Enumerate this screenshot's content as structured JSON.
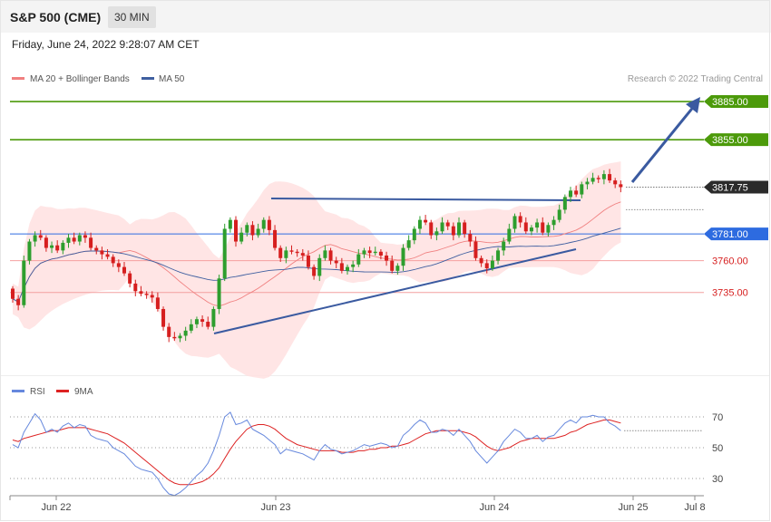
{
  "header": {
    "symbol": "S&P 500 (CME)",
    "timeframe": "30 MIN",
    "datetime": "Friday, June 24, 2022 9:28:07 AM CET"
  },
  "legend": {
    "ma20": "MA 20 + Bollinger Bands",
    "ma50": "MA 50",
    "credit": "Research © 2022 Trading Central",
    "rsi": "RSI",
    "rsi_ma": "9MA"
  },
  "colors": {
    "ma20": "#f08080",
    "bands_fill": "#ffe0e0",
    "ma50": "#3f5fa0",
    "up_candle": "#2e9e2e",
    "down_candle": "#d61f1f",
    "target_line": "#4c9a0a",
    "pivot_line": "#2d6be0",
    "support_line": "#f4a0a0",
    "trend_line": "#3a5aa0",
    "rsi": "#6688dd",
    "rsi_ma": "#dd2222"
  },
  "chart_data": [
    {
      "type": "candlestick",
      "title": "S&P 500 (CME)",
      "ylim": [
        3670,
        3895
      ],
      "x_ticks": [
        "Jun 22",
        "Jun 23",
        "Jun 24",
        "Jun 25",
        "Jul 8"
      ],
      "last_price": 3817.75,
      "levels": [
        {
          "label": "3885.00",
          "value": 3885.0,
          "kind": "target"
        },
        {
          "label": "3855.00",
          "value": 3855.0,
          "kind": "target"
        },
        {
          "label": "3817.75",
          "value": 3817.75,
          "kind": "last"
        },
        {
          "label": "3781.00",
          "value": 3781.0,
          "kind": "pivot"
        },
        {
          "label": "3760.00",
          "value": 3760.0,
          "kind": "support"
        },
        {
          "label": "3735.00",
          "value": 3735.0,
          "kind": "support"
        }
      ],
      "bias": "bullish, arrow from 3817.75 toward 3885.00",
      "series": [
        {
          "name": "MA 20 + Bollinger Bands"
        },
        {
          "name": "MA 50"
        }
      ],
      "close": [
        3730,
        3725,
        3760,
        3775,
        3780,
        3778,
        3770,
        3772,
        3768,
        3774,
        3778,
        3775,
        3780,
        3778,
        3770,
        3768,
        3765,
        3763,
        3758,
        3755,
        3750,
        3742,
        3736,
        3734,
        3733,
        3731,
        3722,
        3708,
        3700,
        3699,
        3701,
        3705,
        3710,
        3714,
        3712,
        3708,
        3722,
        3746,
        3785,
        3792,
        3775,
        3782,
        3788,
        3780,
        3785,
        3792,
        3784,
        3770,
        3762,
        3768,
        3767,
        3766,
        3764,
        3755,
        3748,
        3762,
        3768,
        3760,
        3758,
        3752,
        3755,
        3757,
        3765,
        3768,
        3766,
        3767,
        3764,
        3760,
        3752,
        3756,
        3770,
        3776,
        3785,
        3792,
        3790,
        3780,
        3783,
        3790,
        3787,
        3780,
        3790,
        3781,
        3775,
        3762,
        3758,
        3754,
        3760,
        3768,
        3775,
        3785,
        3795,
        3790,
        3783,
        3786,
        3790,
        3782,
        3788,
        3792,
        3800,
        3810,
        3815,
        3812,
        3820,
        3822,
        3825,
        3824,
        3828,
        3823,
        3820,
        3817.75
      ]
    },
    {
      "type": "line",
      "title": "RSI",
      "ylim": [
        20,
        80
      ],
      "y_ticks": [
        70,
        50,
        30
      ],
      "series": [
        {
          "name": "RSI"
        },
        {
          "name": "9MA"
        }
      ],
      "rsi": [
        52,
        50,
        60,
        66,
        72,
        68,
        60,
        62,
        60,
        64,
        66,
        63,
        65,
        64,
        58,
        56,
        55,
        54,
        50,
        48,
        46,
        42,
        38,
        36,
        35,
        34,
        30,
        24,
        20,
        19,
        21,
        24,
        28,
        32,
        35,
        40,
        48,
        58,
        70,
        73,
        65,
        66,
        68,
        62,
        60,
        58,
        55,
        52,
        46,
        49,
        48,
        47,
        46,
        44,
        42,
        48,
        52,
        49,
        48,
        46,
        47,
        48,
        50,
        52,
        51,
        52,
        53,
        52,
        50,
        51,
        58,
        61,
        65,
        68,
        66,
        60,
        60,
        62,
        61,
        58,
        62,
        58,
        54,
        48,
        44,
        40,
        44,
        48,
        54,
        58,
        62,
        60,
        56,
        56,
        58,
        54,
        57,
        58,
        62,
        66,
        68,
        66,
        70,
        70,
        71,
        70,
        70,
        66,
        64,
        61
      ],
      "rsi_ma": [
        55,
        54,
        56,
        57,
        58,
        59,
        60,
        61,
        61,
        62,
        63,
        63,
        63,
        63,
        62,
        61,
        60,
        59,
        57,
        55,
        53,
        50,
        47,
        44,
        41,
        38,
        35,
        32,
        29,
        27,
        26,
        26,
        26,
        27,
        28,
        30,
        33,
        37,
        43,
        49,
        54,
        58,
        62,
        64,
        65,
        65,
        64,
        62,
        59,
        56,
        54,
        52,
        51,
        50,
        49,
        48,
        48,
        48,
        48,
        47,
        47,
        47,
        48,
        48,
        49,
        49,
        50,
        50,
        51,
        51,
        52,
        53,
        55,
        57,
        59,
        60,
        61,
        61,
        61,
        61,
        61,
        60,
        59,
        57,
        54,
        51,
        49,
        48,
        49,
        50,
        52,
        54,
        55,
        56,
        56,
        56,
        56,
        56,
        57,
        58,
        60,
        61,
        63,
        65,
        66,
        67,
        68,
        68,
        67,
        66
      ]
    }
  ]
}
